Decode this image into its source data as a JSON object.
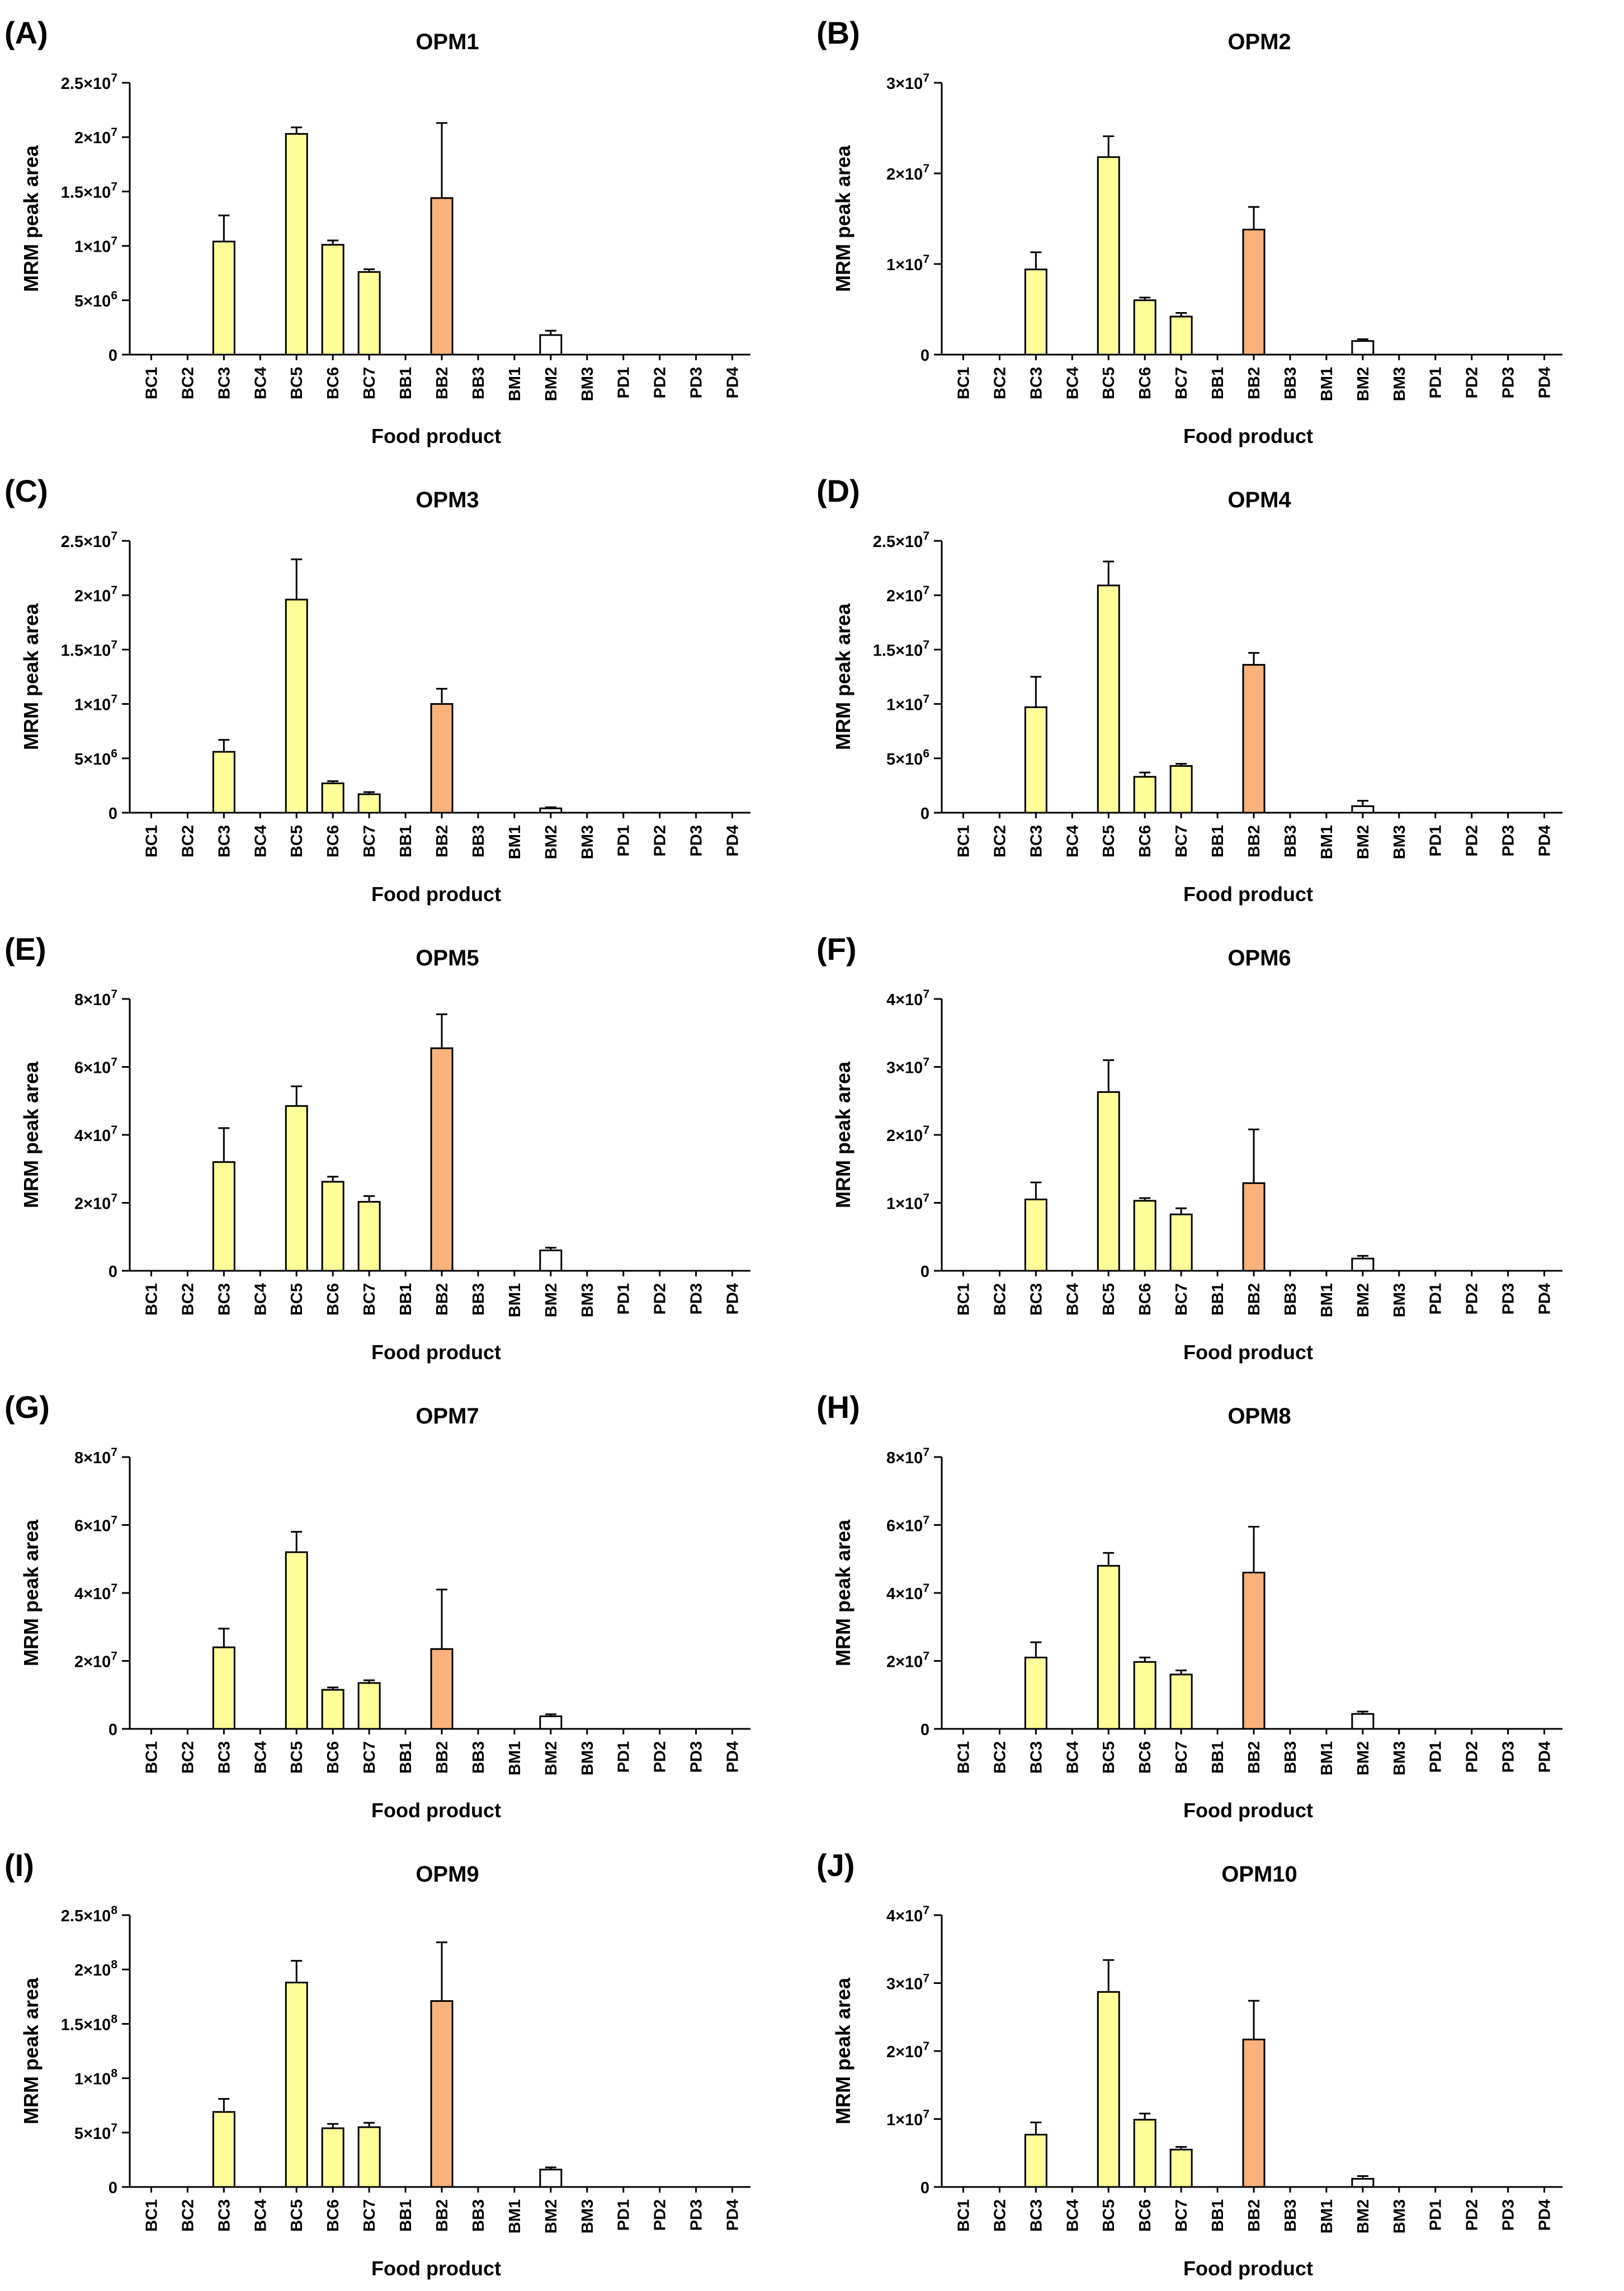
{
  "figure": {
    "x_label": "Food product",
    "y_label": "MRM peak area",
    "categories": [
      "BC1",
      "BC2",
      "BC3",
      "BC4",
      "BC5",
      "BC6",
      "BC7",
      "BB1",
      "BB2",
      "BB3",
      "BM1",
      "BM2",
      "BM3",
      "PD1",
      "PD2",
      "PD3",
      "PD4"
    ],
    "colors": {
      "yellow": "#ffff9a",
      "orange": "#f9b27b",
      "white": "#ffffff",
      "stroke": "#000000"
    },
    "category_colors": [
      "white",
      "white",
      "yellow",
      "white",
      "yellow",
      "yellow",
      "yellow",
      "white",
      "orange",
      "white",
      "white",
      "white",
      "white",
      "white",
      "white",
      "white",
      "white"
    ]
  },
  "chart_data": [
    {
      "type": "bar",
      "letter": "(A)",
      "title": "OPM1",
      "xlabel": "Food product",
      "ylabel": "MRM peak area",
      "categories": [
        "BC1",
        "BC2",
        "BC3",
        "BC4",
        "BC5",
        "BC6",
        "BC7",
        "BB1",
        "BB2",
        "BB3",
        "BM1",
        "BM2",
        "BM3",
        "PD1",
        "PD2",
        "PD3",
        "PD4"
      ],
      "ylim": [
        0,
        25000000
      ],
      "yticks": [
        0,
        5000000,
        10000000,
        15000000,
        20000000,
        25000000
      ],
      "ytick_labels": [
        {
          "m": "0",
          "e": ""
        },
        {
          "m": "5×10",
          "e": "6"
        },
        {
          "m": "1×10",
          "e": "7"
        },
        {
          "m": "1.5×10",
          "e": "7"
        },
        {
          "m": "2×10",
          "e": "7"
        },
        {
          "m": "2.5×10",
          "e": "7"
        }
      ],
      "values": [
        0,
        0,
        10400000,
        0,
        20300000,
        10100000,
        7600000,
        0,
        14400000,
        0,
        0,
        1800000,
        0,
        0,
        0,
        0,
        0
      ],
      "errors": [
        0,
        0,
        2400000,
        0,
        600000,
        400000,
        250000,
        0,
        6900000,
        0,
        0,
        400000,
        0,
        0,
        0,
        0,
        0
      ]
    },
    {
      "type": "bar",
      "letter": "(B)",
      "title": "OPM2",
      "xlabel": "Food product",
      "ylabel": "MRM peak area",
      "categories": [
        "BC1",
        "BC2",
        "BC3",
        "BC4",
        "BC5",
        "BC6",
        "BC7",
        "BB1",
        "BB2",
        "BB3",
        "BM1",
        "BM2",
        "BM3",
        "PD1",
        "PD2",
        "PD3",
        "PD4"
      ],
      "ylim": [
        0,
        30000000
      ],
      "yticks": [
        0,
        10000000,
        20000000,
        30000000
      ],
      "ytick_labels": [
        {
          "m": "0",
          "e": ""
        },
        {
          "m": "1×10",
          "e": "7"
        },
        {
          "m": "2×10",
          "e": "7"
        },
        {
          "m": "3×10",
          "e": "7"
        }
      ],
      "values": [
        0,
        0,
        9400000,
        0,
        21800000,
        6000000,
        4200000,
        0,
        13800000,
        0,
        0,
        1500000,
        0,
        0,
        0,
        0,
        0
      ],
      "errors": [
        0,
        0,
        1900000,
        0,
        2300000,
        300000,
        400000,
        0,
        2500000,
        0,
        0,
        200000,
        0,
        0,
        0,
        0,
        0
      ]
    },
    {
      "type": "bar",
      "letter": "(C)",
      "title": "OPM3",
      "xlabel": "Food product",
      "ylabel": "MRM peak area",
      "categories": [
        "BC1",
        "BC2",
        "BC3",
        "BC4",
        "BC5",
        "BC6",
        "BC7",
        "BB1",
        "BB2",
        "BB3",
        "BM1",
        "BM2",
        "BM3",
        "PD1",
        "PD2",
        "PD3",
        "PD4"
      ],
      "ylim": [
        0,
        25000000
      ],
      "yticks": [
        0,
        5000000,
        10000000,
        15000000,
        20000000,
        25000000
      ],
      "ytick_labels": [
        {
          "m": "0",
          "e": ""
        },
        {
          "m": "5×10",
          "e": "6"
        },
        {
          "m": "1×10",
          "e": "7"
        },
        {
          "m": "1.5×10",
          "e": "7"
        },
        {
          "m": "2×10",
          "e": "7"
        },
        {
          "m": "2.5×10",
          "e": "7"
        }
      ],
      "values": [
        0,
        0,
        5600000,
        0,
        19600000,
        2700000,
        1700000,
        0,
        10000000,
        0,
        0,
        400000,
        0,
        0,
        0,
        0,
        0
      ],
      "errors": [
        0,
        0,
        1100000,
        0,
        3700000,
        200000,
        200000,
        0,
        1400000,
        0,
        0,
        100000,
        0,
        0,
        0,
        0,
        0
      ]
    },
    {
      "type": "bar",
      "letter": "(D)",
      "title": "OPM4",
      "xlabel": "Food product",
      "ylabel": "MRM peak area",
      "categories": [
        "BC1",
        "BC2",
        "BC3",
        "BC4",
        "BC5",
        "BC6",
        "BC7",
        "BB1",
        "BB2",
        "BB3",
        "BM1",
        "BM2",
        "BM3",
        "PD1",
        "PD2",
        "PD3",
        "PD4"
      ],
      "ylim": [
        0,
        25000000
      ],
      "yticks": [
        0,
        5000000,
        10000000,
        15000000,
        20000000,
        25000000
      ],
      "ytick_labels": [
        {
          "m": "0",
          "e": ""
        },
        {
          "m": "5×10",
          "e": "6"
        },
        {
          "m": "1×10",
          "e": "7"
        },
        {
          "m": "1.5×10",
          "e": "7"
        },
        {
          "m": "2×10",
          "e": "7"
        },
        {
          "m": "2.5×10",
          "e": "7"
        }
      ],
      "values": [
        0,
        0,
        9700000,
        0,
        20900000,
        3300000,
        4300000,
        0,
        13600000,
        0,
        0,
        600000,
        0,
        0,
        0,
        0,
        0
      ],
      "errors": [
        0,
        0,
        2800000,
        0,
        2200000,
        400000,
        200000,
        0,
        1100000,
        0,
        0,
        500000,
        0,
        0,
        0,
        0,
        0
      ]
    },
    {
      "type": "bar",
      "letter": "(E)",
      "title": "OPM5",
      "xlabel": "Food product",
      "ylabel": "MRM peak area",
      "categories": [
        "BC1",
        "BC2",
        "BC3",
        "BC4",
        "BC5",
        "BC6",
        "BC7",
        "BB1",
        "BB2",
        "BB3",
        "BM1",
        "BM2",
        "BM3",
        "PD1",
        "PD2",
        "PD3",
        "PD4"
      ],
      "ylim": [
        0,
        80000000
      ],
      "yticks": [
        0,
        20000000,
        40000000,
        60000000,
        80000000
      ],
      "ytick_labels": [
        {
          "m": "0",
          "e": ""
        },
        {
          "m": "2×10",
          "e": "7"
        },
        {
          "m": "4×10",
          "e": "7"
        },
        {
          "m": "6×10",
          "e": "7"
        },
        {
          "m": "8×10",
          "e": "7"
        }
      ],
      "values": [
        0,
        0,
        32000000,
        0,
        48500000,
        26200000,
        20300000,
        0,
        65500000,
        0,
        0,
        6000000,
        0,
        0,
        0,
        0,
        0
      ],
      "errors": [
        0,
        0,
        10000000,
        0,
        5800000,
        1500000,
        1700000,
        0,
        10000000,
        0,
        0,
        800000,
        0,
        0,
        0,
        0,
        0
      ]
    },
    {
      "type": "bar",
      "letter": "(F)",
      "title": "OPM6",
      "xlabel": "Food product",
      "ylabel": "MRM peak area",
      "categories": [
        "BC1",
        "BC2",
        "BC3",
        "BC4",
        "BC5",
        "BC6",
        "BC7",
        "BB1",
        "BB2",
        "BB3",
        "BM1",
        "BM2",
        "BM3",
        "PD1",
        "PD2",
        "PD3",
        "PD4"
      ],
      "ylim": [
        0,
        40000000
      ],
      "yticks": [
        0,
        10000000,
        20000000,
        30000000,
        40000000
      ],
      "ytick_labels": [
        {
          "m": "0",
          "e": ""
        },
        {
          "m": "1×10",
          "e": "7"
        },
        {
          "m": "2×10",
          "e": "7"
        },
        {
          "m": "3×10",
          "e": "7"
        },
        {
          "m": "4×10",
          "e": "7"
        }
      ],
      "values": [
        0,
        0,
        10500000,
        0,
        26300000,
        10300000,
        8300000,
        0,
        12900000,
        0,
        0,
        1800000,
        0,
        0,
        0,
        0,
        0
      ],
      "errors": [
        0,
        0,
        2500000,
        0,
        4700000,
        400000,
        900000,
        0,
        7900000,
        0,
        0,
        400000,
        0,
        0,
        0,
        0,
        0
      ]
    },
    {
      "type": "bar",
      "letter": "(G)",
      "title": "OPM7",
      "xlabel": "Food product",
      "ylabel": "MRM peak area",
      "categories": [
        "BC1",
        "BC2",
        "BC3",
        "BC4",
        "BC5",
        "BC6",
        "BC7",
        "BB1",
        "BB2",
        "BB3",
        "BM1",
        "BM2",
        "BM3",
        "PD1",
        "PD2",
        "PD3",
        "PD4"
      ],
      "ylim": [
        0,
        80000000
      ],
      "yticks": [
        0,
        20000000,
        40000000,
        60000000,
        80000000
      ],
      "ytick_labels": [
        {
          "m": "0",
          "e": ""
        },
        {
          "m": "2×10",
          "e": "7"
        },
        {
          "m": "4×10",
          "e": "7"
        },
        {
          "m": "6×10",
          "e": "7"
        },
        {
          "m": "8×10",
          "e": "7"
        }
      ],
      "values": [
        0,
        0,
        24000000,
        0,
        52000000,
        11500000,
        13500000,
        0,
        23500000,
        0,
        0,
        3700000,
        0,
        0,
        0,
        0,
        0
      ],
      "errors": [
        0,
        0,
        5500000,
        0,
        6000000,
        700000,
        800000,
        0,
        17500000,
        0,
        0,
        600000,
        0,
        0,
        0,
        0,
        0
      ]
    },
    {
      "type": "bar",
      "letter": "(H)",
      "title": "OPM8",
      "xlabel": "Food product",
      "ylabel": "MRM peak area",
      "categories": [
        "BC1",
        "BC2",
        "BC3",
        "BC4",
        "BC5",
        "BC6",
        "BC7",
        "BB1",
        "BB2",
        "BB3",
        "BM1",
        "BM2",
        "BM3",
        "PD1",
        "PD2",
        "PD3",
        "PD4"
      ],
      "ylim": [
        0,
        80000000
      ],
      "yticks": [
        0,
        20000000,
        40000000,
        60000000,
        80000000
      ],
      "ytick_labels": [
        {
          "m": "0",
          "e": ""
        },
        {
          "m": "2×10",
          "e": "7"
        },
        {
          "m": "4×10",
          "e": "7"
        },
        {
          "m": "6×10",
          "e": "7"
        },
        {
          "m": "8×10",
          "e": "7"
        }
      ],
      "values": [
        0,
        0,
        21000000,
        0,
        48000000,
        19700000,
        16000000,
        0,
        46000000,
        0,
        0,
        4400000,
        0,
        0,
        0,
        0,
        0
      ],
      "errors": [
        0,
        0,
        4500000,
        0,
        3800000,
        1300000,
        1200000,
        0,
        13500000,
        0,
        0,
        700000,
        0,
        0,
        0,
        0,
        0
      ]
    },
    {
      "type": "bar",
      "letter": "(I)",
      "title": "OPM9",
      "xlabel": "Food product",
      "ylabel": "MRM peak area",
      "categories": [
        "BC1",
        "BC2",
        "BC3",
        "BC4",
        "BC5",
        "BC6",
        "BC7",
        "BB1",
        "BB2",
        "BB3",
        "BM1",
        "BM2",
        "BM3",
        "PD1",
        "PD2",
        "PD3",
        "PD4"
      ],
      "ylim": [
        0,
        250000000
      ],
      "yticks": [
        0,
        50000000,
        100000000,
        150000000,
        200000000,
        250000000
      ],
      "ytick_labels": [
        {
          "m": "0",
          "e": ""
        },
        {
          "m": "5×10",
          "e": "7"
        },
        {
          "m": "1×10",
          "e": "8"
        },
        {
          "m": "1.5×10",
          "e": "8"
        },
        {
          "m": "2×10",
          "e": "8"
        },
        {
          "m": "2.5×10",
          "e": "8"
        }
      ],
      "values": [
        0,
        0,
        69000000,
        0,
        188000000,
        54000000,
        55000000,
        0,
        171000000,
        0,
        0,
        16000000,
        0,
        0,
        0,
        0,
        0
      ],
      "errors": [
        0,
        0,
        12000000,
        0,
        20000000,
        4000000,
        4000000,
        0,
        54000000,
        0,
        0,
        2000000,
        0,
        0,
        0,
        0,
        0
      ]
    },
    {
      "type": "bar",
      "letter": "(J)",
      "title": "OPM10",
      "xlabel": "Food product",
      "ylabel": "MRM peak area",
      "categories": [
        "BC1",
        "BC2",
        "BC3",
        "BC4",
        "BC5",
        "BC6",
        "BC7",
        "BB1",
        "BB2",
        "BB3",
        "BM1",
        "BM2",
        "BM3",
        "PD1",
        "PD2",
        "PD3",
        "PD4"
      ],
      "ylim": [
        0,
        40000000
      ],
      "yticks": [
        0,
        10000000,
        20000000,
        30000000,
        40000000
      ],
      "ytick_labels": [
        {
          "m": "0",
          "e": ""
        },
        {
          "m": "1×10",
          "e": "7"
        },
        {
          "m": "2×10",
          "e": "7"
        },
        {
          "m": "3×10",
          "e": "7"
        },
        {
          "m": "4×10",
          "e": "7"
        }
      ],
      "values": [
        0,
        0,
        7700000,
        0,
        28700000,
        9900000,
        5500000,
        0,
        21700000,
        0,
        0,
        1200000,
        0,
        0,
        0,
        0,
        0
      ],
      "errors": [
        0,
        0,
        1800000,
        0,
        4700000,
        900000,
        400000,
        0,
        5700000,
        0,
        0,
        400000,
        0,
        0,
        0,
        0,
        0
      ]
    }
  ]
}
